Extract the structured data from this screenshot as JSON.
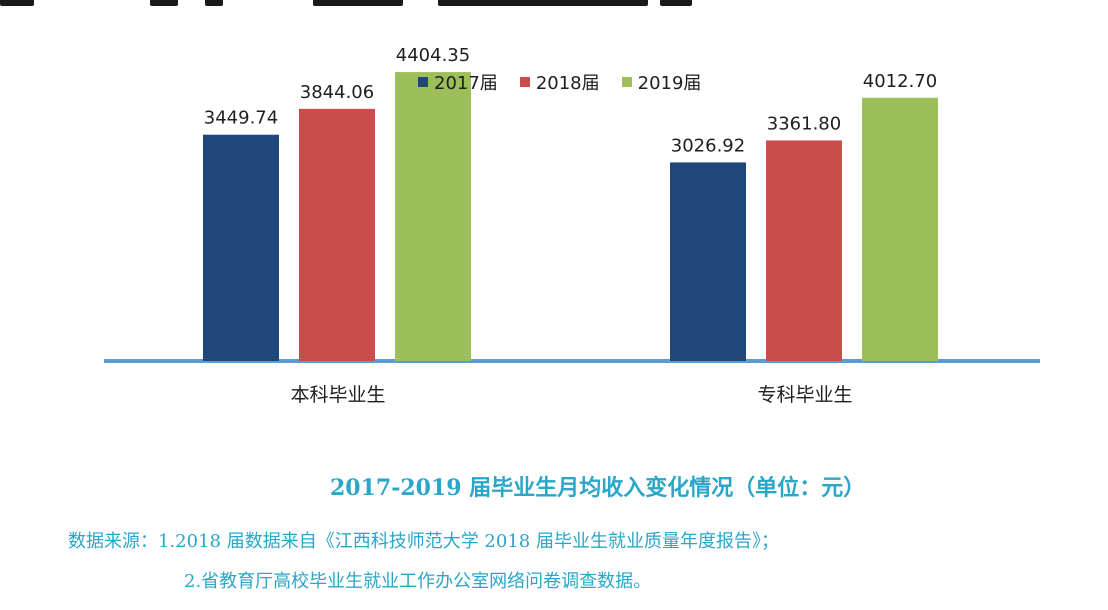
{
  "colors": {
    "series_2017": "#1f477a",
    "series_2018": "#c94d4a",
    "series_2019": "#9dbf5a",
    "axis": "#5b9bd5",
    "caption": "#2aa6c9"
  },
  "chart_data": {
    "type": "bar",
    "title": "2017-2019 届毕业生月均收入变化情况（单位：元）",
    "xlabel": "",
    "ylabel": "",
    "categories": [
      "本科毕业生",
      "专科毕业生"
    ],
    "series": [
      {
        "name": "2017届",
        "values": [
          3449.74,
          3026.92
        ]
      },
      {
        "name": "2018届",
        "values": [
          3844.06,
          3361.8
        ]
      },
      {
        "name": "2019届",
        "values": [
          4404.35,
          4012.7
        ]
      }
    ],
    "data_labels": [
      [
        "3449.74",
        "3026.92"
      ],
      [
        "3844.06",
        "3361.80"
      ],
      [
        "4404.35",
        "4012.70"
      ]
    ],
    "ylim": [
      0,
      5000
    ],
    "grid": false,
    "legend_position": "top-center"
  },
  "source_lines": [
    "数据来源：1.2018 届数据来自《江西科技师范大学 2018 届毕业生就业质量年度报告》；",
    "2.省教育厅高校毕业生就业工作办公室网络问卷调查数据。"
  ]
}
